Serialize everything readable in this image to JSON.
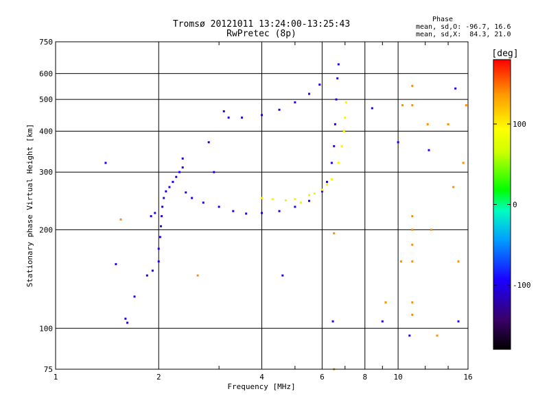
{
  "chart_data": {
    "type": "scatter",
    "title": "Tromsø 20121011 13:24:00-13:25:43",
    "subtitle": "RwPretec (8p)",
    "xlabel": "Frequency [MHz]",
    "ylabel": "Stationary phase Virtual Height [km]",
    "xscale": "log",
    "yscale": "log",
    "xlim": [
      1,
      16
    ],
    "ylim": [
      75,
      750
    ],
    "xticks": [
      1,
      2,
      4,
      6,
      8,
      10,
      16
    ],
    "xtick_labels": [
      "1",
      "2",
      "4",
      "6",
      "8",
      "10",
      "16"
    ],
    "yticks": [
      75,
      100,
      200,
      300,
      400,
      500,
      600,
      750
    ],
    "ytick_labels": [
      "75",
      "100",
      "200",
      "300",
      "400",
      "500",
      "600",
      "750"
    ],
    "grid": true,
    "phase_header": {
      "title": "Phase",
      "line_o": "mean, sd,O: -96.7, 16.6",
      "line_x": "mean, sd,X:  84.3, 21.0"
    },
    "colorbar": {
      "label": "[deg]",
      "range": [
        -180,
        180
      ],
      "ticks": [
        100,
        0,
        -100
      ],
      "tick_labels": [
        "100",
        "0",
        "-100"
      ]
    },
    "series": [
      {
        "mode": "O",
        "phase_deg": -100,
        "points": [
          [
            2.0,
            160
          ],
          [
            2.0,
            175
          ],
          [
            2.02,
            190
          ],
          [
            2.03,
            205
          ],
          [
            2.04,
            220
          ],
          [
            2.05,
            235
          ],
          [
            2.07,
            250
          ],
          [
            2.1,
            262
          ],
          [
            2.15,
            270
          ],
          [
            2.2,
            280
          ],
          [
            2.25,
            290
          ],
          [
            2.3,
            300
          ],
          [
            2.35,
            310
          ],
          [
            2.35,
            330
          ],
          [
            2.4,
            260
          ],
          [
            2.5,
            250
          ],
          [
            2.7,
            242
          ],
          [
            3.0,
            235
          ],
          [
            3.3,
            228
          ],
          [
            3.6,
            224
          ],
          [
            4.0,
            225
          ],
          [
            4.5,
            228
          ],
          [
            5.0,
            235
          ],
          [
            5.5,
            245
          ],
          [
            6.0,
            262
          ],
          [
            6.2,
            280
          ],
          [
            6.4,
            320
          ],
          [
            6.5,
            360
          ],
          [
            6.55,
            420
          ],
          [
            6.6,
            500
          ],
          [
            6.65,
            580
          ],
          [
            6.7,
            640
          ],
          [
            3.2,
            440
          ],
          [
            3.5,
            440
          ],
          [
            4.0,
            448
          ],
          [
            4.5,
            465
          ],
          [
            5.0,
            490
          ],
          [
            5.5,
            520
          ],
          [
            5.9,
            555
          ],
          [
            1.9,
            220
          ],
          [
            1.95,
            225
          ],
          [
            1.92,
            150
          ],
          [
            1.85,
            145
          ],
          [
            1.6,
            107
          ],
          [
            1.62,
            104
          ],
          [
            1.5,
            157
          ],
          [
            1.4,
            320
          ],
          [
            1.7,
            125
          ],
          [
            2.8,
            370
          ],
          [
            2.9,
            300
          ],
          [
            3.1,
            460
          ],
          [
            6.45,
            105
          ],
          [
            8.4,
            470
          ],
          [
            9.0,
            105
          ],
          [
            10.0,
            370
          ],
          [
            10.8,
            95
          ],
          [
            12.3,
            350
          ],
          [
            14.7,
            540
          ],
          [
            15.0,
            105
          ],
          [
            4.6,
            145
          ]
        ]
      },
      {
        "mode": "X",
        "phase_deg": 100,
        "points": [
          [
            4.0,
            250
          ],
          [
            4.3,
            248
          ],
          [
            4.7,
            246
          ],
          [
            5.0,
            248
          ],
          [
            5.5,
            255
          ],
          [
            6.0,
            265
          ],
          [
            6.4,
            285
          ],
          [
            6.7,
            320
          ],
          [
            6.85,
            360
          ],
          [
            6.95,
            400
          ],
          [
            7.0,
            440
          ],
          [
            7.05,
            490
          ],
          [
            5.2,
            242
          ],
          [
            5.7,
            258
          ],
          [
            6.2,
            275
          ]
        ]
      },
      {
        "mode": "scattered",
        "phase_deg": 140,
        "points": [
          [
            11.0,
            550
          ],
          [
            11.0,
            480
          ],
          [
            11.0,
            220
          ],
          [
            11.0,
            200
          ],
          [
            11.0,
            180
          ],
          [
            11.0,
            160
          ],
          [
            11.0,
            120
          ],
          [
            11.0,
            110
          ],
          [
            12.5,
            200
          ],
          [
            13.0,
            95
          ],
          [
            14.0,
            420
          ],
          [
            14.5,
            270
          ],
          [
            15.0,
            160
          ],
          [
            10.3,
            480
          ],
          [
            10.2,
            160
          ],
          [
            9.2,
            120
          ],
          [
            15.5,
            320
          ],
          [
            6.5,
            75
          ],
          [
            6.5,
            195
          ],
          [
            2.6,
            145
          ],
          [
            1.55,
            215
          ],
          [
            12.2,
            420
          ],
          [
            15.8,
            480
          ]
        ]
      }
    ]
  }
}
